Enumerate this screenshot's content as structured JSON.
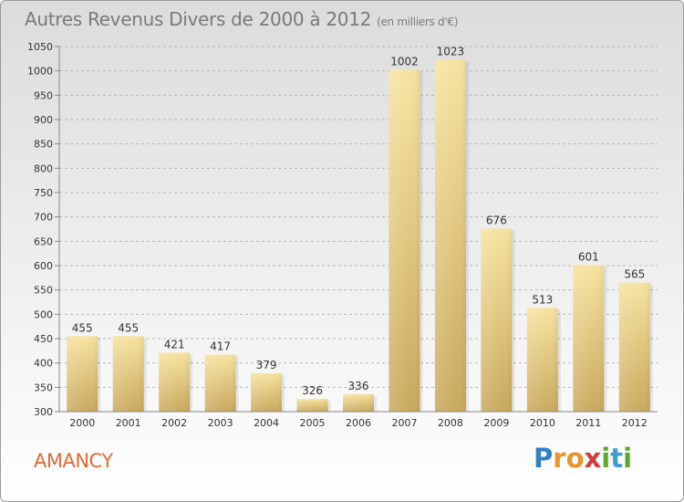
{
  "title": "Autres Revenus Divers de 2000 à 2012",
  "unit_note": "(en milliers d'€)",
  "commune": "AMANCY",
  "logo": {
    "letters": [
      "P",
      "r",
      "o",
      "x",
      "i",
      "t",
      "i"
    ],
    "colors": [
      "#2f7fc8",
      "#e8962a",
      "#e8962a",
      "#d13c3c",
      "#5aa832",
      "#3f9ad6",
      "#5aa832"
    ]
  },
  "colors": {
    "bar_light": "#f7e3a0",
    "bar_dark": "#c9a95e",
    "axis_text": "#333333",
    "grid": "#b8b8b8",
    "commune": "#e06a3a"
  },
  "chart_data": {
    "type": "bar",
    "categories": [
      "2000",
      "2001",
      "2002",
      "2003",
      "2004",
      "2005",
      "2006",
      "2007",
      "2008",
      "2009",
      "2010",
      "2011",
      "2012"
    ],
    "values": [
      455,
      455,
      421,
      417,
      379,
      326,
      336,
      1002,
      1023,
      676,
      513,
      601,
      565
    ],
    "ylim": [
      300,
      1050
    ],
    "yticks": [
      300,
      350,
      400,
      450,
      500,
      550,
      600,
      650,
      700,
      750,
      800,
      850,
      900,
      950,
      1000,
      1050
    ],
    "grid": true,
    "grid_style": "dashed-horizontal",
    "data_labels": true
  }
}
